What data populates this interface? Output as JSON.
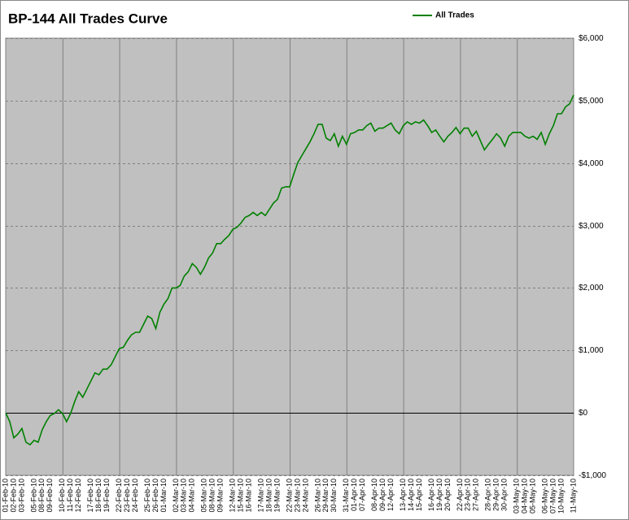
{
  "chart_data": {
    "type": "line",
    "title": "BP-144 All Trades Curve",
    "legend": "top-center",
    "y_axis_side": "right",
    "grid": true,
    "ylim": [
      -1000,
      6000
    ],
    "yticks": [
      {
        "value": -1000,
        "label": "-$1,000"
      },
      {
        "value": 0,
        "label": "$0"
      },
      {
        "value": 1000,
        "label": "$1,000"
      },
      {
        "value": 2000,
        "label": "$2,000"
      },
      {
        "value": 3000,
        "label": "$3,000"
      },
      {
        "value": 4000,
        "label": "$4,000"
      },
      {
        "value": 5000,
        "label": "$5,000"
      },
      {
        "value": 6000,
        "label": "$6,000"
      }
    ],
    "categories": [
      "01-Feb-10",
      null,
      "02-Feb-10",
      null,
      "03-Feb-10",
      null,
      null,
      "05-Feb-10",
      null,
      "08-Feb-10",
      null,
      "09-Feb-10",
      null,
      null,
      "10-Feb-10",
      null,
      "11-Feb-10",
      null,
      "12-Feb-10",
      null,
      null,
      "17-Feb-10",
      null,
      "18-Feb-10",
      null,
      "19-Feb-10",
      null,
      null,
      "22-Feb-10",
      null,
      "23-Feb-10",
      null,
      "24-Feb-10",
      null,
      null,
      "25-Feb-10",
      null,
      "26-Feb-10",
      null,
      "01-Mar-10",
      null,
      null,
      "02-Mar-10",
      null,
      "03-Mar-10",
      null,
      "04-Mar-10",
      null,
      null,
      "05-Mar-10",
      null,
      "08-Mar-10",
      null,
      "09-Mar-10",
      null,
      null,
      "12-Mar-10",
      null,
      "15-Mar-10",
      null,
      "16-Mar-10",
      null,
      null,
      "17-Mar-10",
      null,
      "18-Mar-10",
      null,
      "19-Mar-10",
      null,
      null,
      "22-Mar-10",
      null,
      "23-Mar-10",
      null,
      "24-Mar-10",
      null,
      null,
      "26-Mar-10",
      null,
      "29-Mar-10",
      null,
      "30-Mar-10",
      null,
      null,
      "31-Mar-10",
      null,
      "01-Apr-10",
      null,
      "07-Apr-10",
      null,
      null,
      "08-Apr-10",
      null,
      "09-Apr-10",
      null,
      "12-Apr-10",
      null,
      null,
      "13-Apr-10",
      null,
      "14-Apr-10",
      null,
      "15-Apr-10",
      null,
      null,
      "16-Apr-10",
      null,
      "19-Apr-10",
      null,
      "20-Apr-10",
      null,
      null,
      "22-Apr-10",
      null,
      "23-Apr-10",
      null,
      "27-Apr-10",
      null,
      null,
      "28-Apr-10",
      null,
      "29-Apr-10",
      null,
      "30-Apr-10",
      null,
      null,
      "03-May-10",
      null,
      "04-May-10",
      null,
      "05-May-10",
      null,
      null,
      "06-May-10",
      null,
      "07-May-10",
      null,
      "10-May-10",
      null,
      null,
      "11-May-10"
    ],
    "series": [
      {
        "name": "All Trades",
        "color": "#008000",
        "values": [
          0,
          -140,
          -400,
          -340,
          -250,
          -470,
          -510,
          -440,
          -470,
          -270,
          -140,
          -40,
          -10,
          50,
          -10,
          -140,
          -10,
          180,
          340,
          250,
          380,
          510,
          640,
          610,
          700,
          700,
          770,
          900,
          1030,
          1050,
          1160,
          1250,
          1290,
          1290,
          1420,
          1550,
          1510,
          1350,
          1610,
          1740,
          1830,
          2000,
          2000,
          2040,
          2190,
          2260,
          2390,
          2330,
          2220,
          2330,
          2480,
          2560,
          2710,
          2710,
          2780,
          2840,
          2940,
          2970,
          3040,
          3130,
          3160,
          3210,
          3160,
          3210,
          3160,
          3260,
          3360,
          3420,
          3600,
          3620,
          3620,
          3820,
          4010,
          4120,
          4230,
          4340,
          4470,
          4620,
          4620,
          4400,
          4360,
          4470,
          4270,
          4430,
          4300,
          4470,
          4490,
          4530,
          4530,
          4600,
          4640,
          4510,
          4560,
          4560,
          4600,
          4640,
          4530,
          4470,
          4600,
          4660,
          4620,
          4660,
          4640,
          4690,
          4600,
          4490,
          4530,
          4430,
          4340,
          4430,
          4490,
          4570,
          4470,
          4560,
          4560,
          4430,
          4510,
          4360,
          4210,
          4300,
          4380,
          4470,
          4400,
          4270,
          4430,
          4490,
          4490,
          4490,
          4430,
          4400,
          4430,
          4380,
          4490,
          4300,
          4470,
          4600,
          4790,
          4790,
          4900,
          4950,
          5090
        ]
      }
    ]
  }
}
